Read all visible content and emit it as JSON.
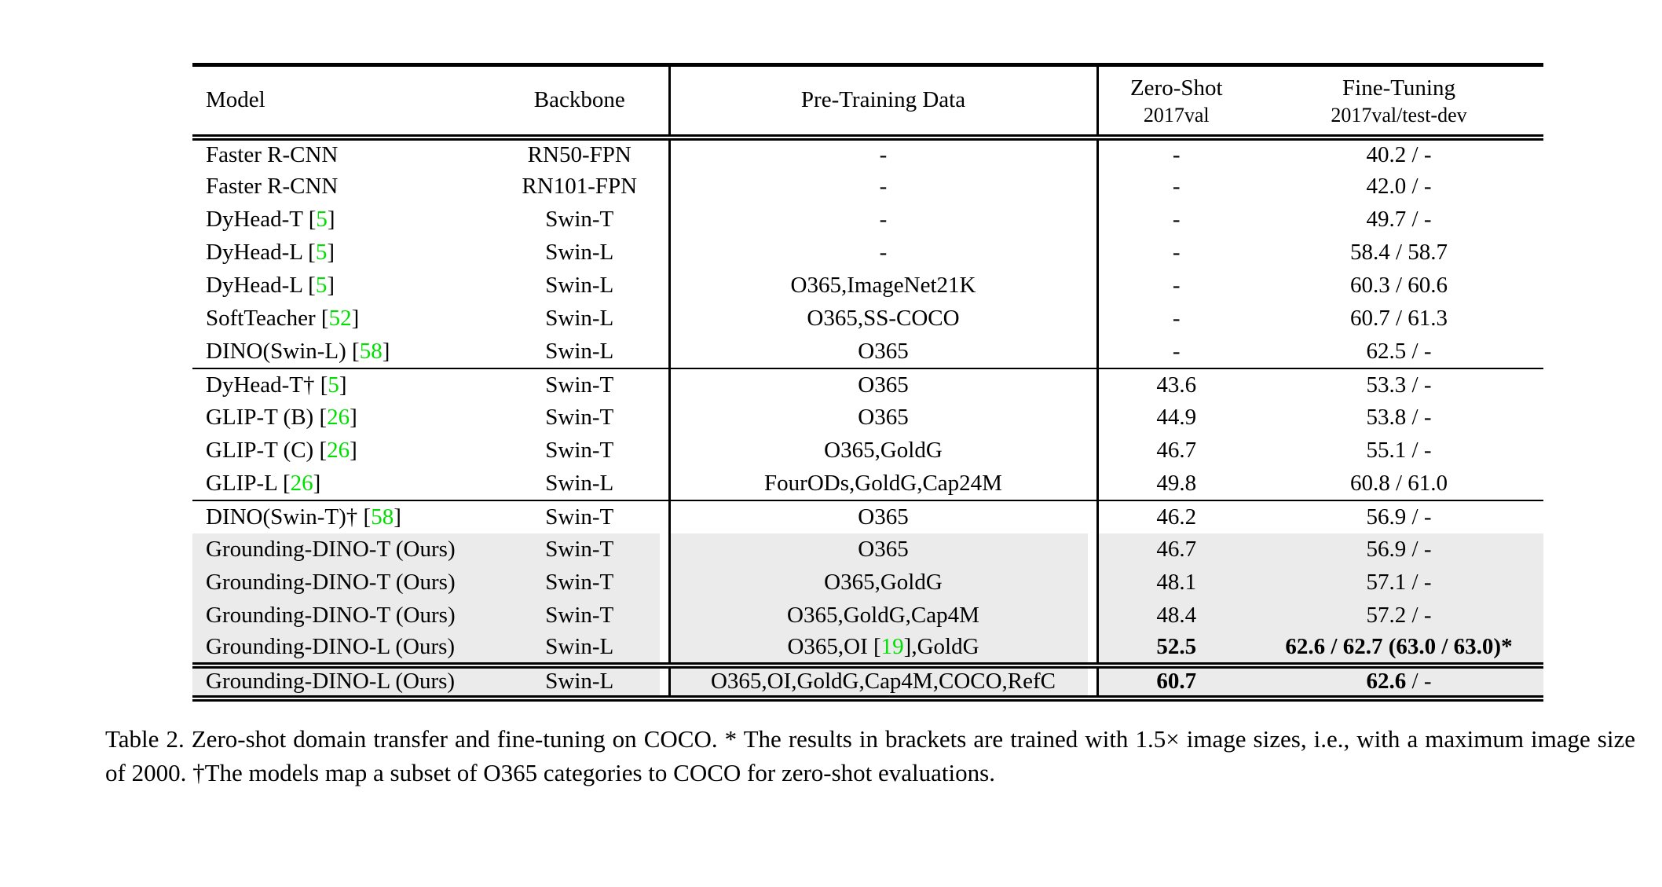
{
  "colors": {
    "citation_green": "#00e000",
    "row_highlight": "#ebebeb"
  },
  "caption": "Table 2.  Zero-shot domain transfer and fine-tuning on COCO. * The results in brackets are trained with 1.5× image sizes, i.e., with a maximum image size of 2000. †The models map a subset of O365 categories to COCO for zero-shot evaluations.",
  "table": {
    "header": {
      "model": "Model",
      "backbone": "Backbone",
      "pretrain": "Pre-Training Data",
      "zeroshot_line1": "Zero-Shot",
      "zeroshot_line2": "2017val",
      "finetune_line1": "Fine-Tuning",
      "finetune_line2": "2017val/test-dev"
    },
    "rows": [
      {
        "m": "Faster R-CNN",
        "bb": "RN50-FPN",
        "p": "-",
        "zs": "-",
        "ft": "40.2 / -"
      },
      {
        "m": "Faster R-CNN",
        "bb": "RN101-FPN",
        "p": "-",
        "zs": "-",
        "ft": "42.0 / -"
      },
      {
        "m": "DyHead-T [",
        "mr": "5",
        "mp": "]",
        "bb": "Swin-T",
        "p": "-",
        "zs": "-",
        "ft": "49.7 / -"
      },
      {
        "m": "DyHead-L [",
        "mr": "5",
        "mp": "]",
        "bb": "Swin-L",
        "p": "-",
        "zs": "-",
        "ft": "58.4 / 58.7"
      },
      {
        "m": "DyHead-L [",
        "mr": "5",
        "mp": "]",
        "bb": "Swin-L",
        "p": "O365,ImageNet21K",
        "zs": "-",
        "ft": "60.3 / 60.6"
      },
      {
        "m": "SoftTeacher [",
        "mr": "52",
        "mp": "]",
        "bb": "Swin-L",
        "p": "O365,SS-COCO",
        "zs": "-",
        "ft": "60.7 / 61.3"
      },
      {
        "m": "DINO(Swin-L) [",
        "mr": "58",
        "mp": "]",
        "bb": "Swin-L",
        "p": "O365",
        "zs": "-",
        "ft": "62.5 / -"
      },
      {
        "m": "DyHead-T† [",
        "mr": "5",
        "mp": "]",
        "bb": "Swin-T",
        "p": "O365",
        "zs": "43.6",
        "ft": "53.3 / -"
      },
      {
        "m": "GLIP-T (B) [",
        "mr": "26",
        "mp": "]",
        "bb": "Swin-T",
        "p": "O365",
        "zs": "44.9",
        "ft": "53.8 / -"
      },
      {
        "m": "GLIP-T (C) [",
        "mr": "26",
        "mp": "]",
        "bb": "Swin-T",
        "p": "O365,GoldG",
        "zs": "46.7",
        "ft": "55.1 / -"
      },
      {
        "m": "GLIP-L [",
        "mr": "26",
        "mp": "]",
        "bb": "Swin-L",
        "p": "FourODs,GoldG,Cap24M",
        "zs": "49.8",
        "ft": "60.8 / 61.0"
      },
      {
        "m": "DINO(Swin-T)† [",
        "mr": "58",
        "mp": "]",
        "bb": "Swin-T",
        "p": "O365",
        "zs": "46.2",
        "ft": "56.9 / -"
      },
      {
        "m": "Grounding-DINO-T (Ours)",
        "bb": "Swin-T",
        "p": "O365",
        "zs": "46.7",
        "ft": "56.9 / -"
      },
      {
        "m": "Grounding-DINO-T (Ours)",
        "bb": "Swin-T",
        "p": "O365,GoldG",
        "zs": "48.1",
        "ft": "57.1 / -"
      },
      {
        "m": "Grounding-DINO-T (Ours)",
        "bb": "Swin-T",
        "p": "O365,GoldG,Cap4M",
        "zs": "48.4",
        "ft": "57.2 / -"
      },
      {
        "m": "Grounding-DINO-L (Ours)",
        "bb": "Swin-L",
        "p": "O365,OI [",
        "pr": "19",
        "pp": "],GoldG",
        "zs": "52.5",
        "ft": "62.6 / 62.7 (63.0 / 63.0)*"
      },
      {
        "m": "Grounding-DINO-L (Ours)",
        "bb": "Swin-L",
        "p": "O365,OI,GoldG,Cap4M,COCO,RefC",
        "zs": "60.7",
        "ft": "62.6",
        "ft2": " / -"
      }
    ]
  }
}
